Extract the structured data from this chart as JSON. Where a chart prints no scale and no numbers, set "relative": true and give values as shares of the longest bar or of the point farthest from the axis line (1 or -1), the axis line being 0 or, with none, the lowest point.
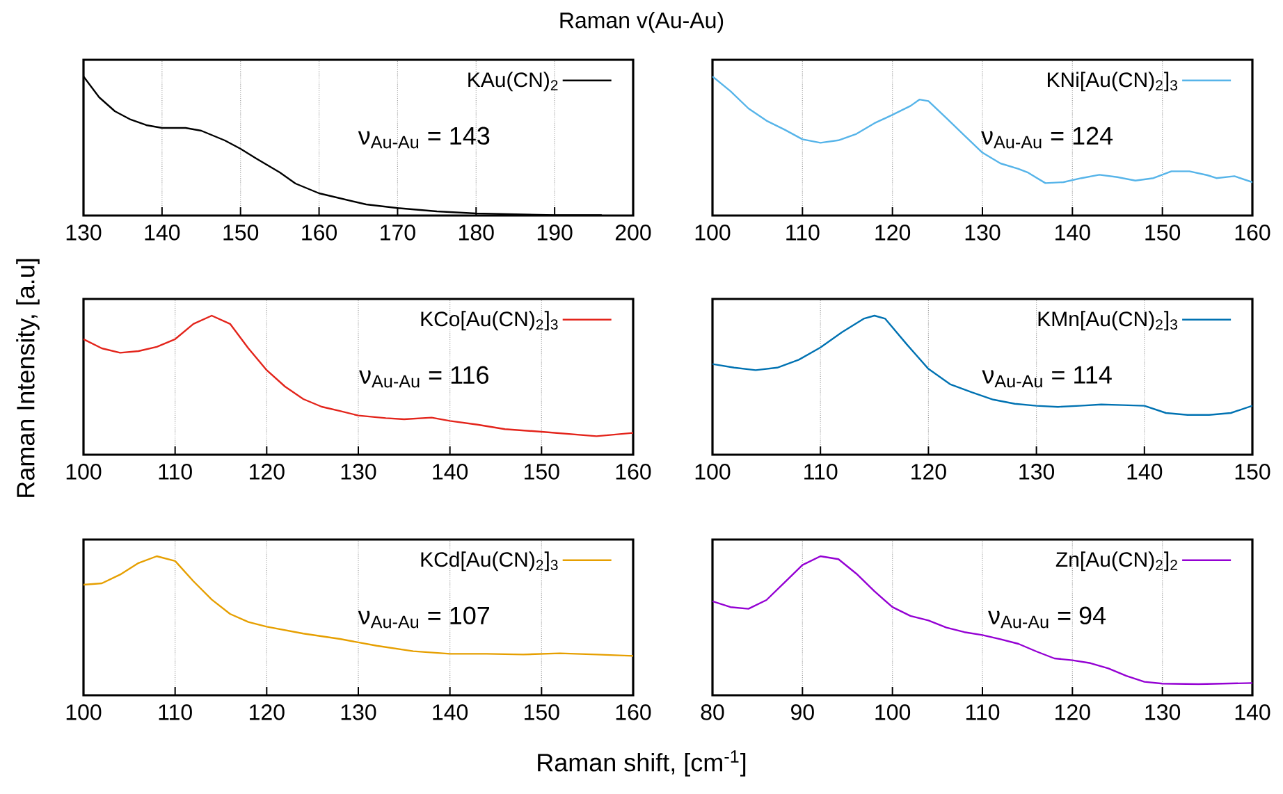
{
  "chart_data": [
    {
      "type": "line",
      "title": "Raman v(Au-Au)",
      "relative": true,
      "xlim": [
        130,
        200
      ],
      "xticks": [
        130,
        140,
        150,
        160,
        170,
        180,
        190,
        200
      ],
      "grid": "x",
      "legend": "top right",
      "tick_labels": "x",
      "annotations": [
        "ν$_{Au-Au}$ = 143"
      ],
      "series": [
        {
          "name": "KAu(CN)$_{2}$",
          "color": "#000000",
          "x": [
            130,
            132,
            134,
            136,
            138,
            140,
            143,
            145,
            148,
            150,
            152,
            155,
            157,
            160,
            163,
            166,
            170,
            175,
            180,
            185,
            190,
            196
          ],
          "values": [
            1.0,
            0.85,
            0.75,
            0.69,
            0.65,
            0.63,
            0.63,
            0.61,
            0.54,
            0.48,
            0.41,
            0.31,
            0.23,
            0.16,
            0.12,
            0.08,
            0.054,
            0.03,
            0.015,
            0.009,
            0.003,
            0.003
          ]
        }
      ]
    },
    {
      "type": "line",
      "relative": true,
      "xlim": [
        100,
        160
      ],
      "xticks": [
        100,
        110,
        120,
        130,
        140,
        150,
        160
      ],
      "grid": "x",
      "legend": "top right",
      "tick_labels": "x",
      "annotations": [
        "ν$_{Au-Au}$ = 124"
      ],
      "series": [
        {
          "name": "KNi[Au(CN)$_{2}$]$_{3}$",
          "color": "#56b4e9",
          "x": [
            100,
            102,
            104,
            106,
            108,
            110,
            112,
            114,
            116,
            118,
            120,
            122,
            123,
            124,
            126,
            128,
            130,
            132,
            134,
            135,
            137,
            139,
            141,
            143,
            145,
            147,
            149,
            151,
            153,
            155,
            156,
            158,
            160
          ],
          "values": [
            1.0,
            0.894,
            0.77,
            0.682,
            0.618,
            0.548,
            0.523,
            0.541,
            0.587,
            0.664,
            0.724,
            0.788,
            0.834,
            0.823,
            0.7,
            0.576,
            0.452,
            0.375,
            0.336,
            0.311,
            0.233,
            0.24,
            0.269,
            0.293,
            0.276,
            0.251,
            0.269,
            0.318,
            0.318,
            0.29,
            0.269,
            0.283,
            0.24
          ]
        }
      ]
    },
    {
      "type": "line",
      "ylabel": "Raman Intensity, [a.u]",
      "relative": true,
      "xlim": [
        100,
        160
      ],
      "xticks": [
        100,
        110,
        120,
        130,
        140,
        150,
        160
      ],
      "grid": "x",
      "legend": "top right",
      "tick_labels": "x",
      "annotations": [
        "ν$_{Au-Au}$ = 116"
      ],
      "series": [
        {
          "name": "KCo[Au(CN)$_{2}$]$_{3}$",
          "color": "#e3241b",
          "x": [
            100,
            102,
            104,
            106,
            108,
            110,
            112,
            114,
            116,
            118,
            120,
            122,
            124,
            126,
            128,
            130,
            133,
            135,
            138,
            140,
            143,
            146,
            150,
            153,
            156,
            160
          ],
          "values": [
            0.831,
            0.765,
            0.733,
            0.745,
            0.776,
            0.831,
            0.941,
            1.0,
            0.941,
            0.765,
            0.608,
            0.49,
            0.4,
            0.345,
            0.314,
            0.282,
            0.263,
            0.255,
            0.267,
            0.243,
            0.216,
            0.184,
            0.165,
            0.149,
            0.133,
            0.157
          ]
        }
      ]
    },
    {
      "type": "line",
      "relative": true,
      "xlim": [
        100,
        150
      ],
      "xticks": [
        100,
        110,
        120,
        130,
        140,
        150
      ],
      "grid": "x",
      "legend": "top right",
      "tick_labels": "x",
      "annotations": [
        "ν$_{Au-Au}$ = 114"
      ],
      "series": [
        {
          "name": "KMn[Au(CN)$_{2}$]$_{3}$",
          "color": "#0072b2",
          "x": [
            100,
            102,
            104,
            106,
            108,
            110,
            112,
            114,
            115,
            116,
            118,
            120,
            122,
            124,
            126,
            128,
            130,
            132,
            134,
            136,
            138,
            140,
            142,
            144,
            146,
            148,
            150
          ],
          "values": [
            0.652,
            0.626,
            0.608,
            0.626,
            0.683,
            0.771,
            0.881,
            0.978,
            1.0,
            0.978,
            0.793,
            0.617,
            0.507,
            0.449,
            0.396,
            0.366,
            0.352,
            0.344,
            0.352,
            0.361,
            0.357,
            0.352,
            0.3,
            0.286,
            0.286,
            0.3,
            0.352
          ]
        }
      ]
    },
    {
      "type": "line",
      "xlabel": "Raman shift, [cm$^{-1}$]",
      "relative": true,
      "xlim": [
        100,
        160
      ],
      "xticks": [
        100,
        110,
        120,
        130,
        140,
        150,
        160
      ],
      "grid": "x",
      "legend": "top right",
      "tick_labels": "x",
      "annotations": [
        "ν$_{Au-Au}$ = 107"
      ],
      "series": [
        {
          "name": "KCd[Au(CN)$_{2}$]$_{3}$",
          "color": "#e69f00",
          "x": [
            100,
            102,
            104,
            106,
            108,
            110,
            112,
            114,
            116,
            118,
            120,
            124,
            128,
            132,
            136,
            140,
            144,
            148,
            152,
            156,
            160
          ],
          "values": [
            0.795,
            0.805,
            0.868,
            0.951,
            1.0,
            0.966,
            0.82,
            0.688,
            0.585,
            0.527,
            0.493,
            0.444,
            0.405,
            0.356,
            0.317,
            0.298,
            0.298,
            0.293,
            0.302,
            0.293,
            0.283
          ]
        }
      ]
    },
    {
      "type": "line",
      "relative": true,
      "xlim": [
        80,
        140
      ],
      "xticks": [
        80,
        90,
        100,
        110,
        120,
        130,
        140
      ],
      "grid": "x",
      "legend": "top right",
      "tick_labels": "x",
      "annotations": [
        "ν$_{Au-Au}$ = 94"
      ],
      "series": [
        {
          "name": "Zn[Au(CN)$_{2}$]$_{2}$",
          "color": "#9400d3",
          "x": [
            80,
            82,
            84,
            86,
            88,
            90,
            92,
            94,
            96,
            98,
            100,
            102,
            104,
            106,
            108,
            110,
            112,
            114,
            116,
            118,
            120,
            122,
            124,
            126,
            128,
            130,
            134,
            140
          ],
          "values": [
            0.676,
            0.634,
            0.622,
            0.685,
            0.811,
            0.937,
            1.0,
            0.979,
            0.874,
            0.748,
            0.634,
            0.571,
            0.538,
            0.487,
            0.454,
            0.433,
            0.403,
            0.37,
            0.315,
            0.265,
            0.252,
            0.231,
            0.193,
            0.139,
            0.097,
            0.084,
            0.08,
            0.088
          ]
        }
      ]
    }
  ]
}
